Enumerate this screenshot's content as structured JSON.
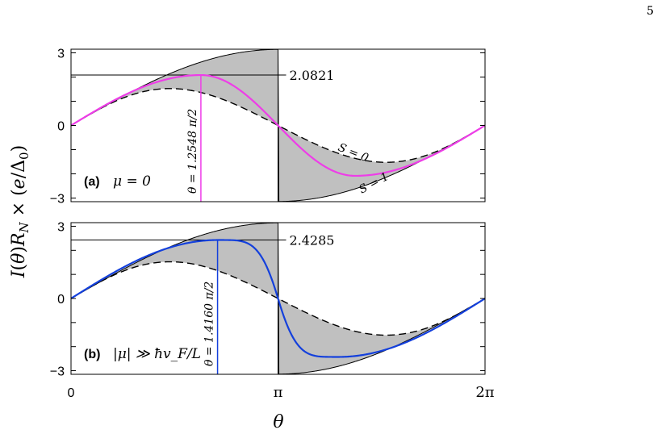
{
  "page": {
    "number": "5"
  },
  "chart_data": [
    {
      "type": "line",
      "panel_label": "(a)",
      "panel_condition": "μ = 0",
      "xlabel": "θ",
      "ylabel": "I(θ)R_N × (e/Δ₀)",
      "xlim": [
        0,
        6.2832
      ],
      "ylim": [
        -3.15,
        3.15
      ],
      "xticks": [
        {
          "value": 0,
          "label": "0"
        },
        {
          "value": 3.1416,
          "label": "π"
        },
        {
          "value": 6.2832,
          "label": "2π"
        }
      ],
      "yticks": [
        {
          "value": 3,
          "label": "3"
        },
        {
          "value": 0,
          "label": "0"
        },
        {
          "value": -3,
          "label": "−3"
        }
      ],
      "peak_label": "2.0821",
      "peak_value": 2.0821,
      "peak_theta_label": "θ = 1.2548 π/2",
      "peak_theta": 1.971,
      "curve_color": "#ee3de8",
      "s0_label": "S = 0",
      "s1_label": "S = 1"
    },
    {
      "type": "line",
      "panel_label": "(b)",
      "panel_condition": "|μ| ≫ ħv_F/L",
      "xlabel": "θ",
      "ylabel": "I(θ)R_N × (e/Δ₀)",
      "xlim": [
        0,
        6.2832
      ],
      "ylim": [
        -3.15,
        3.15
      ],
      "xticks": [
        {
          "value": 0,
          "label": "0"
        },
        {
          "value": 3.1416,
          "label": "π"
        },
        {
          "value": 6.2832,
          "label": "2π"
        }
      ],
      "yticks": [
        {
          "value": 3,
          "label": "3"
        },
        {
          "value": 0,
          "label": "0"
        },
        {
          "value": -3,
          "label": "−3"
        }
      ],
      "peak_label": "2.4285",
      "peak_value": 2.4285,
      "peak_theta_label": "θ = 1.4160 π/2",
      "peak_theta": 2.224,
      "curve_color": "#1440dc"
    }
  ],
  "axes_text": {
    "xlabel": "θ",
    "ylabel": "I(θ)R_N × (e/Δ₀)"
  }
}
